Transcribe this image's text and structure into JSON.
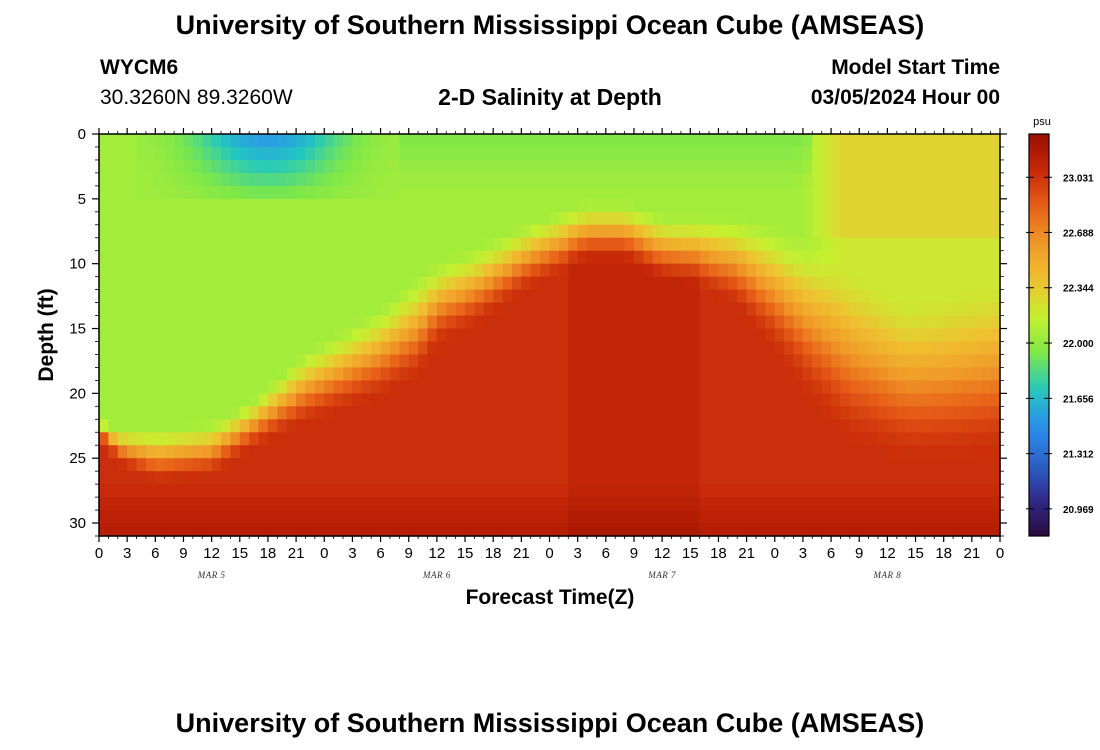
{
  "header": {
    "title": "University of Southern Mississippi Ocean Cube (AMSEAS)",
    "station_id": "WYCM6",
    "station_coords": "30.3260N  89.3260W",
    "plot_title": "2-D Salinity at Depth",
    "start_label": "Model Start Time",
    "start_value": "03/05/2024 Hour 00"
  },
  "footer": {
    "title": "University of Southern Mississippi Ocean Cube (AMSEAS)"
  },
  "colors": {
    "background": "#ffffff",
    "axis": "#000000",
    "colormap": [
      "#2a0a3c",
      "#302a8c",
      "#2a64c8",
      "#2e8ef0",
      "#22c8c0",
      "#7ee848",
      "#c6f030",
      "#f0c030",
      "#f09a28",
      "#e86018",
      "#c82808",
      "#981000"
    ]
  },
  "chart_data": {
    "type": "heatmap",
    "title": "2-D Salinity at Depth",
    "xlabel": "Forecast Time(Z)",
    "ylabel": "Depth (ft)",
    "x_hours": [
      0,
      96
    ],
    "ylim": [
      0,
      31
    ],
    "x_tick_labels": [
      "0",
      "3",
      "6",
      "9",
      "12",
      "15",
      "18",
      "21",
      "0",
      "3",
      "6",
      "9",
      "12",
      "15",
      "18",
      "21",
      "0",
      "3",
      "6",
      "9",
      "12",
      "15",
      "18",
      "21",
      "0",
      "3",
      "6",
      "9",
      "12",
      "15",
      "18",
      "21",
      "0"
    ],
    "day_labels": [
      {
        "label": "MAR 5",
        "hour": 12
      },
      {
        "label": "MAR 6",
        "hour": 36
      },
      {
        "label": "MAR 7",
        "hour": 60
      },
      {
        "label": "MAR 8",
        "hour": 84
      }
    ],
    "y_ticks": [
      0,
      5,
      10,
      15,
      20,
      25,
      30
    ],
    "colorbar": {
      "unit": "psu",
      "min": 20.8,
      "max": 23.3,
      "tick_labels": [
        "23.031",
        "22.688",
        "22.344",
        "22.000",
        "21.656",
        "21.312",
        "20.969"
      ]
    },
    "halocline_depth_ft": [
      {
        "hour": 0,
        "top": 22.0,
        "bottom": 23.5
      },
      {
        "hour": 2,
        "top": 22.5,
        "bottom": 25.5
      },
      {
        "hour": 6,
        "top": 22.5,
        "bottom": 27.0
      },
      {
        "hour": 12,
        "top": 22.0,
        "bottom": 26.5
      },
      {
        "hour": 16,
        "top": 20.5,
        "bottom": 24.5
      },
      {
        "hour": 22,
        "top": 16.5,
        "bottom": 22.5
      },
      {
        "hour": 30,
        "top": 13.0,
        "bottom": 20.5
      },
      {
        "hour": 34,
        "top": 10.5,
        "bottom": 19.0
      },
      {
        "hour": 36,
        "top": 9.5,
        "bottom": 16.5
      },
      {
        "hour": 40,
        "top": 8.5,
        "bottom": 15.0
      },
      {
        "hour": 46,
        "top": 6.5,
        "bottom": 12.0
      },
      {
        "hour": 52,
        "top": 5.0,
        "bottom": 10.0
      },
      {
        "hour": 56,
        "top": 5.0,
        "bottom": 10.0
      },
      {
        "hour": 60,
        "top": 6.0,
        "bottom": 11.5
      },
      {
        "hour": 64,
        "top": 6.0,
        "bottom": 12.0
      },
      {
        "hour": 68,
        "top": 6.0,
        "bottom": 13.5
      },
      {
        "hour": 72,
        "top": 6.5,
        "bottom": 17.0
      },
      {
        "hour": 76,
        "top": 7.5,
        "bottom": 21.0
      },
      {
        "hour": 80,
        "top": 10.0,
        "bottom": 24.0
      },
      {
        "hour": 86,
        "top": 12.5,
        "bottom": 25.5
      },
      {
        "hour": 90,
        "top": 12.0,
        "bottom": 25.5
      },
      {
        "hour": 96,
        "top": 11.0,
        "bottom": 25.0
      }
    ]
  }
}
